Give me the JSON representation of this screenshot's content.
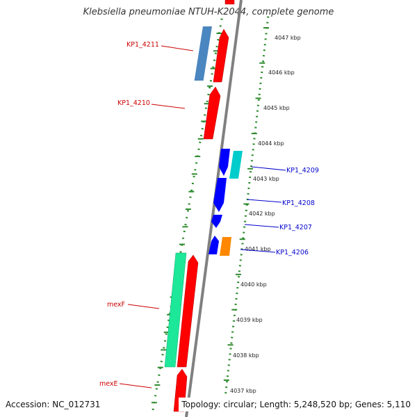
{
  "title": "Klebsiella pneumoniae NTUH-K2044, complete genome",
  "accession": "Accession: NC_012731",
  "topology": "Topology: circular; Length: 5,248,520 bp; Genes: 5,110",
  "colors": {
    "backbone": "#808080",
    "tick": "#2e8b2e",
    "red": "#ff0000",
    "blue": "#0000ff",
    "steelblue": "#4a86c0",
    "cyan": "#00cccc",
    "orange": "#ff8800",
    "green": "#1de89a",
    "label_red": "#cc0000",
    "label_blue": "#0000cc"
  },
  "kbp_labels": [
    "4047 kbp",
    "4046 kbp",
    "4045 kbp",
    "4044 kbp",
    "4043 kbp",
    "4042 kbp",
    "4041 kbp",
    "4040 kbp",
    "4039 kbp",
    "4038 kbp",
    "4037 kbp"
  ],
  "gene_labels": [
    {
      "name": "KP1_4211",
      "color": "red"
    },
    {
      "name": "KP1_4210",
      "color": "red"
    },
    {
      "name": "KP1_4209",
      "color": "blue"
    },
    {
      "name": "KP1_4208",
      "color": "blue"
    },
    {
      "name": "KP1_4207",
      "color": "blue"
    },
    {
      "name": "KP1_4206",
      "color": "blue"
    },
    {
      "name": "mexF",
      "color": "red"
    },
    {
      "name": "mexE",
      "color": "red"
    }
  ]
}
